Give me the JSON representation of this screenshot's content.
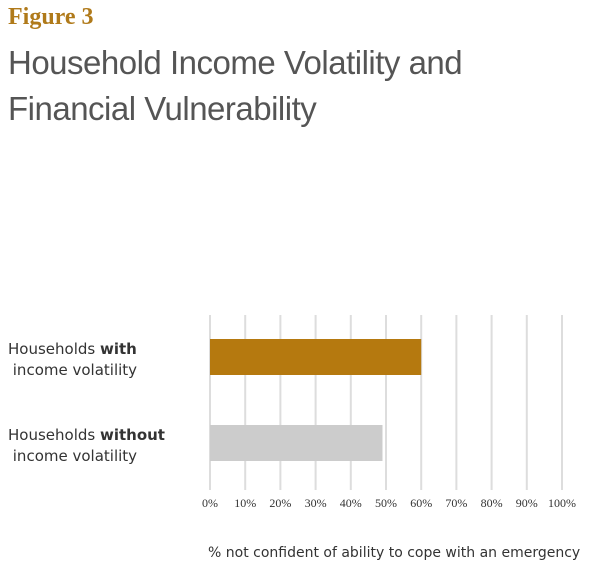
{
  "chart_data": {
    "type": "hbar",
    "figure_label": "Figure 3",
    "title": "Household Income Volatility and Financial Vulnerability",
    "categories": [
      "Households with income volatility",
      "Households without income volatility"
    ],
    "series": [
      {
        "name": null,
        "values": [
          60,
          49
        ],
        "colors": [
          "#b5790f",
          "#cccccc"
        ]
      }
    ],
    "xlim": [
      0,
      100
    ],
    "xticks": [
      {
        "value": 0,
        "label": "0%"
      },
      {
        "value": 10,
        "label": "10%"
      },
      {
        "value": 20,
        "label": "20%"
      },
      {
        "value": 30,
        "label": "30%"
      },
      {
        "value": 40,
        "label": "40%"
      },
      {
        "value": 50,
        "label": "50%"
      },
      {
        "value": 60,
        "label": "60%"
      },
      {
        "value": 70,
        "label": "70%"
      },
      {
        "value": 80,
        "label": "80%"
      },
      {
        "value": 90,
        "label": "90%"
      },
      {
        "value": 100,
        "label": "100%"
      }
    ],
    "xlabel": "% not confident of ability to cope with an emergency",
    "grid": true
  }
}
